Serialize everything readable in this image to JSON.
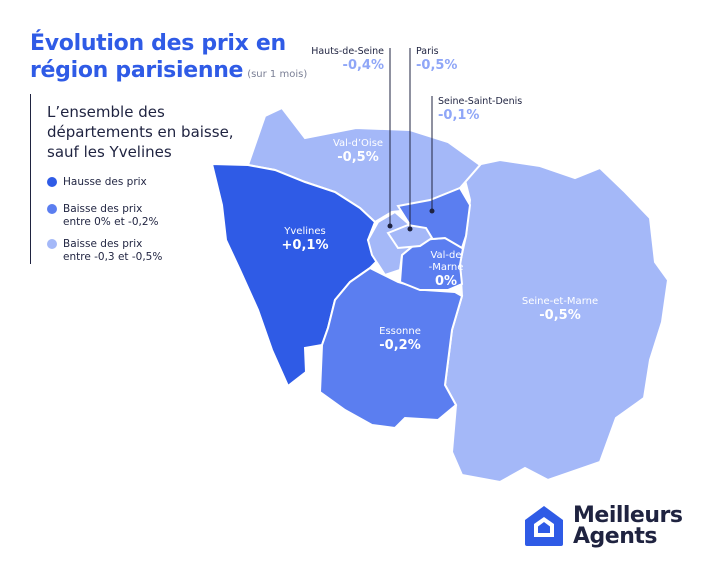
{
  "title": {
    "line1": "Évolution des prix en",
    "line2": "région parisienne",
    "subtitle": "(sur 1 mois)"
  },
  "headline": "L’ensemble des départements en baisse, sauf les Yvelines",
  "legend": [
    {
      "label_line1": "Hausse des prix",
      "label_line2": "",
      "color": "#2f5be6"
    },
    {
      "label_line1": "Baisse des prix",
      "label_line2": "entre 0% et -0,2%",
      "color": "#5b7ef0"
    },
    {
      "label_line1": "Baisse des prix",
      "label_line2": "entre -0,3 et -0,5%",
      "color": "#a4b8f8"
    }
  ],
  "departments": {
    "val_doise": {
      "name": "Val-d’Oise",
      "value": "-0,5%",
      "color": "#a4b8f8"
    },
    "yvelines": {
      "name": "Yvelines",
      "value": "+0,1%",
      "color": "#2f5be6"
    },
    "essonne": {
      "name": "Essonne",
      "value": "-0,2%",
      "color": "#5b7ef0"
    },
    "seine_et_marne": {
      "name": "Seine-et-Marne",
      "value": "-0,5%",
      "color": "#a4b8f8"
    },
    "val_de_marne": {
      "name_line1": "Val-de",
      "name_line2": "-Marne",
      "value": "0%",
      "color": "#5b7ef0"
    },
    "hauts_de_seine": {
      "name": "Hauts-de-Seine",
      "value": "-0,4%",
      "color": "#a4b8f8"
    },
    "paris": {
      "name": "Paris",
      "value": "-0,5%",
      "color": "#a4b8f8"
    },
    "seine_saint_denis": {
      "name": "Seine-Saint-Denis",
      "value": "-0,1%",
      "color": "#5b7ef0"
    }
  },
  "logo": {
    "line1": "Meilleurs",
    "line2": "Agents"
  }
}
